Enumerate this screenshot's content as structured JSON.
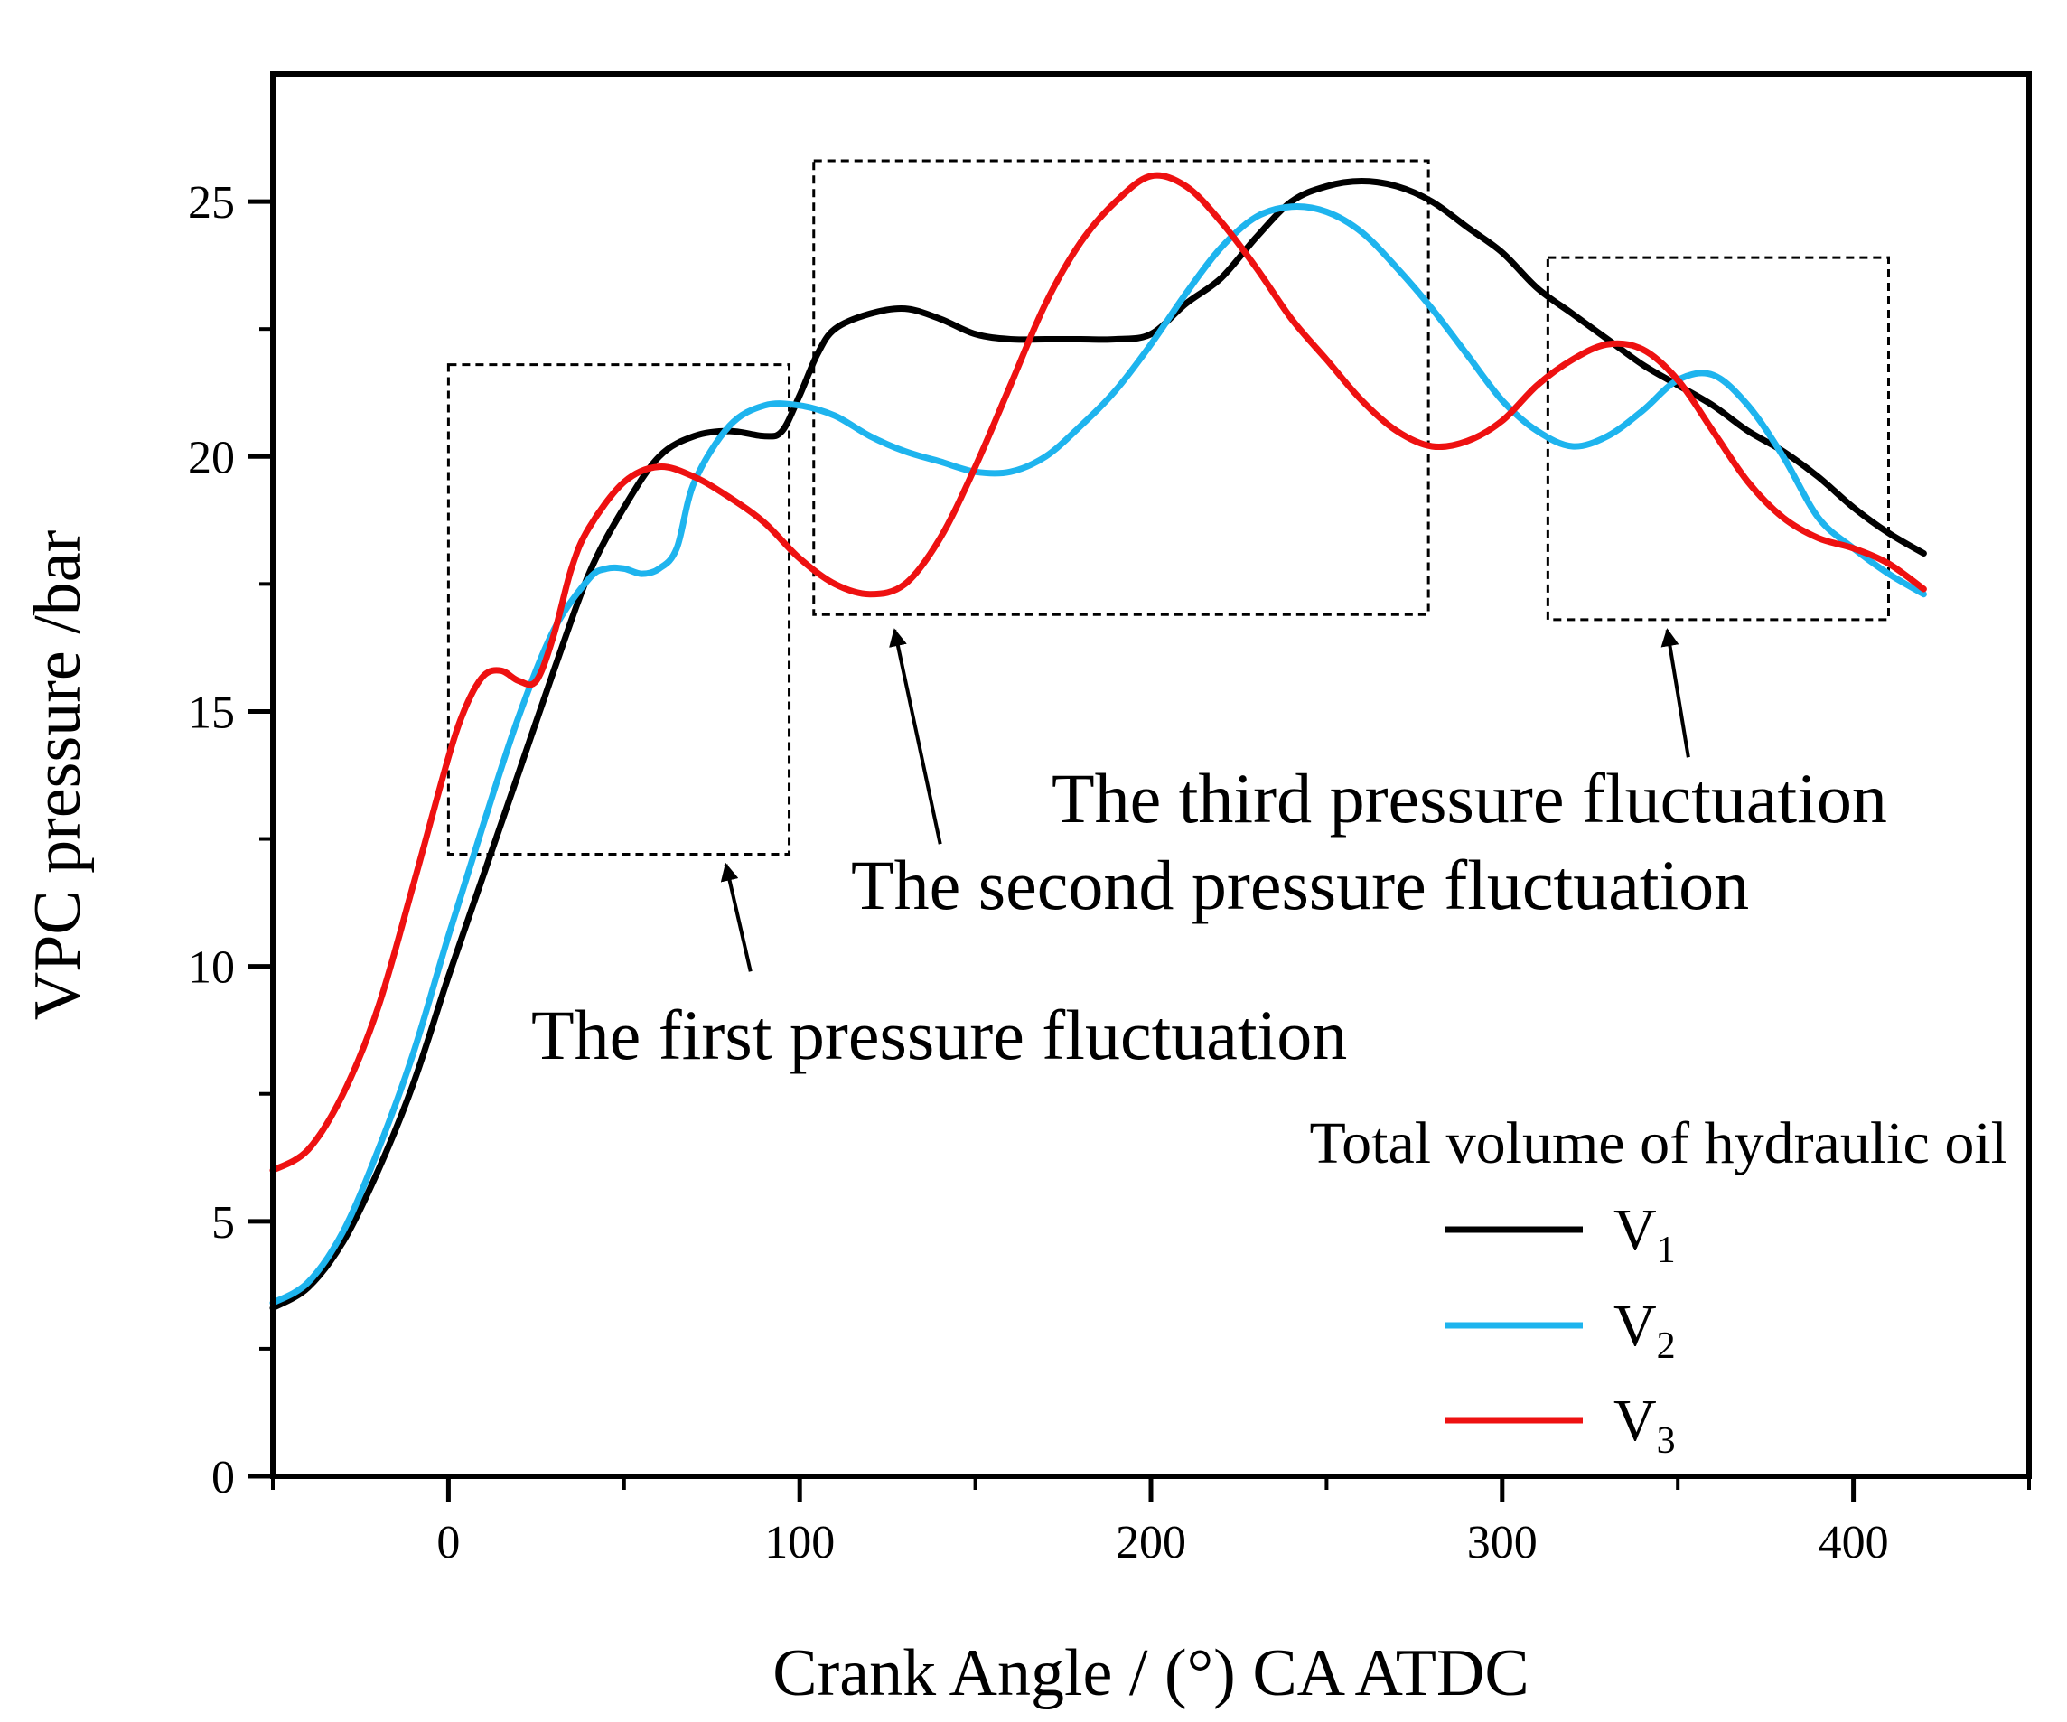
{
  "chart_data": {
    "type": "line",
    "title": "",
    "xlabel": "Crank Angle / (°) CA ATDC",
    "ylabel": "VPC pressure /bar",
    "xlim": [
      -50,
      450
    ],
    "ylim": [
      0,
      27.5
    ],
    "xticks": [
      0,
      100,
      200,
      300,
      400
    ],
    "yticks": [
      0,
      5,
      10,
      15,
      20,
      25
    ],
    "grid": false,
    "legend": {
      "title": "Total volume of hydraulic oil",
      "position": "bottom-right",
      "entries": [
        {
          "label": "V",
          "sub": "1",
          "color": "#000000"
        },
        {
          "label": "V",
          "sub": "2",
          "color": "#1eb4ee"
        },
        {
          "label": "V",
          "sub": "3",
          "color": "#ee1111"
        }
      ]
    },
    "series": [
      {
        "name": "V1",
        "color": "#000000",
        "x": [
          -50,
          -40,
          -30,
          -20,
          -10,
          0,
          10,
          20,
          30,
          40,
          50,
          60,
          70,
          80,
          90,
          95,
          100,
          105,
          110,
          120,
          130,
          140,
          150,
          160,
          170,
          180,
          190,
          200,
          210,
          220,
          230,
          240,
          250,
          260,
          270,
          280,
          290,
          300,
          310,
          320,
          330,
          340,
          350,
          360,
          370,
          380,
          390,
          400,
          410,
          420
        ],
        "y": [
          3.3,
          3.7,
          4.6,
          6.0,
          7.7,
          9.8,
          11.8,
          13.8,
          15.8,
          17.7,
          19.0,
          20.0,
          20.4,
          20.5,
          20.4,
          20.5,
          21.2,
          22.0,
          22.5,
          22.8,
          22.9,
          22.7,
          22.4,
          22.3,
          22.3,
          22.3,
          22.3,
          22.4,
          23.0,
          23.5,
          24.3,
          25.0,
          25.3,
          25.4,
          25.3,
          25.0,
          24.5,
          24.0,
          23.3,
          22.8,
          22.3,
          21.8,
          21.4,
          21.0,
          20.5,
          20.1,
          19.6,
          19.0,
          18.5,
          18.1
        ]
      },
      {
        "name": "V2",
        "color": "#1eb4ee",
        "x": [
          -50,
          -40,
          -30,
          -20,
          -10,
          0,
          10,
          20,
          30,
          40,
          45,
          50,
          55,
          60,
          65,
          70,
          80,
          90,
          100,
          110,
          120,
          130,
          140,
          150,
          160,
          170,
          180,
          190,
          200,
          210,
          220,
          230,
          240,
          250,
          260,
          270,
          280,
          290,
          300,
          310,
          320,
          330,
          340,
          350,
          360,
          370,
          380,
          390,
          400,
          410,
          420
        ],
        "y": [
          3.4,
          3.8,
          4.8,
          6.4,
          8.3,
          10.6,
          12.8,
          14.9,
          16.6,
          17.6,
          17.8,
          17.8,
          17.7,
          17.8,
          18.2,
          19.5,
          20.6,
          21.0,
          21.0,
          20.8,
          20.4,
          20.1,
          19.9,
          19.7,
          19.7,
          20.0,
          20.6,
          21.3,
          22.2,
          23.2,
          24.1,
          24.7,
          24.9,
          24.8,
          24.4,
          23.7,
          22.9,
          22.0,
          21.1,
          20.5,
          20.2,
          20.4,
          20.9,
          21.5,
          21.6,
          21.0,
          20.0,
          18.8,
          18.2,
          17.7,
          17.3
        ]
      },
      {
        "name": "V3",
        "color": "#ee1111",
        "x": [
          -50,
          -40,
          -30,
          -20,
          -10,
          0,
          5,
          10,
          15,
          20,
          25,
          30,
          35,
          40,
          50,
          60,
          70,
          80,
          90,
          100,
          110,
          120,
          130,
          140,
          150,
          160,
          170,
          180,
          190,
          200,
          210,
          220,
          230,
          240,
          250,
          260,
          270,
          280,
          290,
          300,
          310,
          320,
          330,
          340,
          350,
          360,
          370,
          380,
          390,
          400,
          410,
          420
        ],
        "y": [
          6.0,
          6.4,
          7.5,
          9.2,
          11.6,
          14.1,
          15.1,
          15.7,
          15.8,
          15.6,
          15.6,
          16.5,
          17.8,
          18.6,
          19.5,
          19.8,
          19.6,
          19.2,
          18.7,
          18.0,
          17.5,
          17.3,
          17.5,
          18.4,
          19.8,
          21.4,
          23.0,
          24.2,
          25.0,
          25.5,
          25.3,
          24.6,
          23.7,
          22.7,
          21.9,
          21.1,
          20.5,
          20.2,
          20.3,
          20.7,
          21.4,
          21.9,
          22.2,
          22.1,
          21.5,
          20.5,
          19.5,
          18.8,
          18.4,
          18.2,
          17.9,
          17.4
        ]
      }
    ],
    "annotations": [
      {
        "text": "The first pressure fluctuation",
        "box_x": [
          0,
          97
        ],
        "box_y": [
          12.2,
          21.8
        ],
        "arrow_from": [
          86,
          9.9
        ],
        "arrow_to": [
          79,
          12.0
        ]
      },
      {
        "text": "The second pressure fluctuation",
        "box_x": [
          104,
          279
        ],
        "box_y": [
          16.9,
          25.8
        ],
        "arrow_from": [
          140,
          12.4
        ],
        "arrow_to": [
          127,
          16.6
        ]
      },
      {
        "text": "The third pressure fluctuation",
        "box_x": [
          313,
          410
        ],
        "box_y": [
          16.8,
          23.9
        ],
        "arrow_from": [
          353,
          14.1
        ],
        "arrow_to": [
          347,
          16.6
        ]
      }
    ]
  }
}
